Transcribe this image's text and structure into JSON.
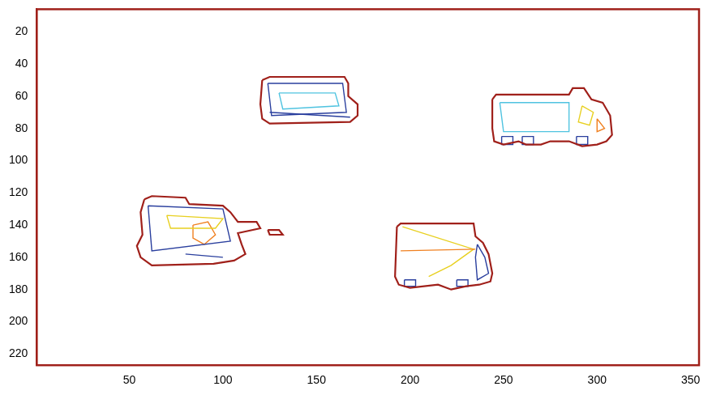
{
  "chart_data": {
    "type": "contour",
    "xlim": [
      0.5,
      354.5
    ],
    "ylim": [
      227,
      6
    ],
    "xticks": [
      50,
      100,
      150,
      200,
      250,
      300,
      350
    ],
    "yticks": [
      20,
      40,
      60,
      80,
      100,
      120,
      140,
      160,
      180,
      200,
      220
    ],
    "grid": false,
    "series": [
      {
        "color": "#a0201a",
        "x": [
          121,
          125,
          165,
          167,
          167,
          172,
          172,
          168,
          125,
          121,
          120,
          121
        ],
        "y": [
          50,
          48,
          48,
          52,
          60,
          65,
          72,
          76,
          77,
          74,
          65,
          50
        ]
      },
      {
        "color": "#2a3f9e",
        "x": [
          124,
          164,
          166,
          126,
          124
        ],
        "y": [
          52,
          52,
          70,
          72,
          52
        ]
      },
      {
        "color": "#4fc3e0",
        "x": [
          130,
          160,
          162,
          132,
          130
        ],
        "y": [
          58,
          58,
          66,
          68,
          58
        ]
      },
      {
        "color": "#2a3f9e",
        "x": [
          125,
          168
        ],
        "y": [
          70,
          73
        ]
      },
      {
        "color": "#a0201a",
        "x": [
          244,
          246,
          285,
          287,
          293,
          297,
          303,
          307,
          308,
          305,
          300,
          292,
          285,
          275,
          270,
          262,
          258,
          250,
          245,
          244,
          244
        ],
        "y": [
          62,
          59,
          59,
          55,
          55,
          62,
          64,
          72,
          84,
          88,
          90,
          91,
          88,
          88,
          90,
          90,
          88,
          90,
          88,
          80,
          62
        ]
      },
      {
        "color": "#4fc3e0",
        "x": [
          248,
          285,
          285,
          250,
          248
        ],
        "y": [
          64,
          64,
          82,
          82,
          64
        ]
      },
      {
        "color": "#e8d020",
        "x": [
          292,
          298,
          296,
          290,
          292
        ],
        "y": [
          66,
          70,
          78,
          76,
          66
        ]
      },
      {
        "color": "#f08020",
        "x": [
          300,
          304,
          300,
          300
        ],
        "y": [
          74,
          80,
          82,
          74
        ]
      },
      {
        "color": "#2a3f9e",
        "x": [
          249,
          255,
          255,
          249,
          249
        ],
        "y": [
          85,
          85,
          90,
          90,
          85
        ]
      },
      {
        "color": "#2a3f9e",
        "x": [
          260,
          266,
          266,
          260,
          260
        ],
        "y": [
          85,
          85,
          90,
          90,
          85
        ]
      },
      {
        "color": "#2a3f9e",
        "x": [
          289,
          295,
          295,
          289,
          289
        ],
        "y": [
          85,
          85,
          90,
          90,
          85
        ]
      },
      {
        "color": "#a0201a",
        "x": [
          58,
          62,
          80,
          82,
          100,
          104,
          108,
          118,
          120,
          108,
          110,
          112,
          106,
          95,
          62,
          56,
          54,
          57,
          56,
          58
        ],
        "y": [
          124,
          122,
          123,
          127,
          128,
          132,
          138,
          138,
          142,
          145,
          152,
          158,
          162,
          164,
          165,
          160,
          153,
          146,
          132,
          124
        ]
      },
      {
        "color": "#a0201a",
        "x": [
          124,
          130,
          132,
          125,
          124
        ],
        "y": [
          143,
          143,
          146,
          146,
          143
        ]
      },
      {
        "color": "#2a3f9e",
        "x": [
          60,
          100,
          104,
          62,
          60
        ],
        "y": [
          128,
          130,
          150,
          156,
          128
        ]
      },
      {
        "color": "#e8d020",
        "x": [
          70,
          100,
          96,
          72,
          70
        ],
        "y": [
          134,
          136,
          142,
          142,
          134
        ]
      },
      {
        "color": "#f08020",
        "x": [
          84,
          92,
          96,
          90,
          84,
          84
        ],
        "y": [
          140,
          138,
          146,
          152,
          148,
          140
        ]
      },
      {
        "color": "#2a3f9e",
        "x": [
          80,
          100
        ],
        "y": [
          158,
          160
        ]
      },
      {
        "color": "#a0201a",
        "x": [
          193,
          195,
          234,
          235,
          239,
          242,
          244,
          243,
          237,
          230,
          222,
          215,
          200,
          194,
          192,
          193
        ],
        "y": [
          141,
          139,
          139,
          147,
          151,
          158,
          170,
          175,
          177,
          178,
          180,
          177,
          179,
          177,
          172,
          141
        ]
      },
      {
        "color": "#f08020",
        "x": [
          195,
          235
        ],
        "y": [
          156,
          155
        ]
      },
      {
        "color": "#e8d020",
        "x": [
          196,
          234,
          222,
          210
        ],
        "y": [
          141,
          155,
          165,
          172
        ]
      },
      {
        "color": "#2a3f9e",
        "x": [
          236,
          240,
          242,
          236,
          235,
          236
        ],
        "y": [
          152,
          160,
          170,
          174,
          160,
          152
        ]
      },
      {
        "color": "#2a3f9e",
        "x": [
          197,
          203,
          203,
          197,
          197
        ],
        "y": [
          174,
          174,
          178,
          178,
          174
        ]
      },
      {
        "color": "#2a3f9e",
        "x": [
          225,
          231,
          231,
          225,
          225
        ],
        "y": [
          174,
          174,
          178,
          178,
          174
        ]
      }
    ]
  }
}
